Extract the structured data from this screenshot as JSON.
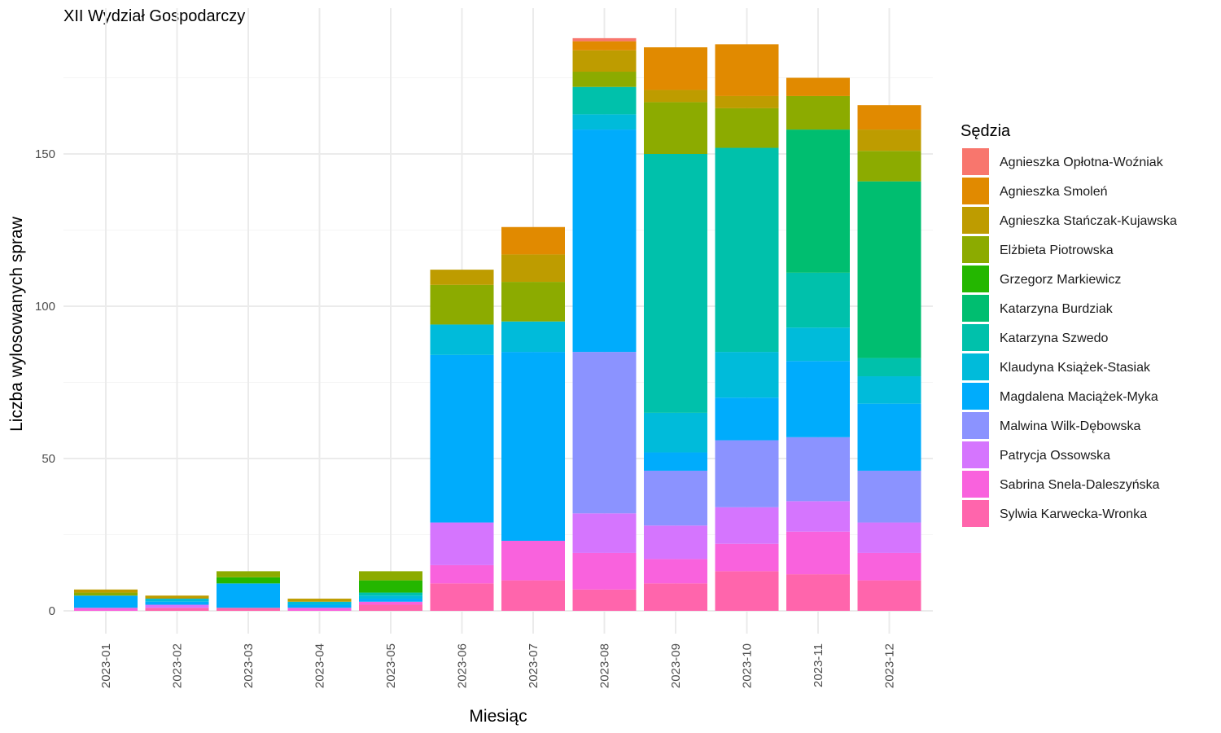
{
  "chart_data": {
    "type": "bar",
    "stacked": true,
    "title": "XII Wydział Gospodarczy",
    "xlabel": "Miesiąc",
    "ylabel": "Liczba wylosowanych spraw",
    "ylim": [
      0,
      188
    ],
    "yticks": [
      0,
      50,
      100,
      150
    ],
    "grid": true,
    "legend_position": "right",
    "legend_title": "Sędzia",
    "categories": [
      "2023-01",
      "2023-02",
      "2023-03",
      "2023-04",
      "2023-05",
      "2023-06",
      "2023-07",
      "2023-08",
      "2023-09",
      "2023-10",
      "2023-11",
      "2023-12"
    ],
    "series": [
      {
        "name": "Agnieszka Opłotna-Woźniak",
        "color": "#F8766D",
        "values": [
          0,
          0,
          0,
          0,
          0,
          0,
          0,
          1,
          0,
          0,
          0,
          0
        ]
      },
      {
        "name": "Agnieszka Smoleń",
        "color": "#E18A00",
        "values": [
          0,
          0,
          0,
          0,
          0,
          0,
          9,
          3,
          14,
          17,
          6,
          8
        ]
      },
      {
        "name": "Agnieszka Stańczak-Kujawska",
        "color": "#BE9C00",
        "values": [
          1,
          1,
          0,
          1,
          0,
          5,
          9,
          7,
          4,
          4,
          0,
          7
        ]
      },
      {
        "name": "Elżbieta Piotrowska",
        "color": "#8CAB00",
        "values": [
          1,
          0,
          2,
          0,
          3,
          13,
          13,
          5,
          17,
          13,
          11,
          10
        ]
      },
      {
        "name": "Grzegorz Markiewicz",
        "color": "#24B700",
        "values": [
          0,
          0,
          2,
          0,
          4,
          0,
          0,
          0,
          0,
          0,
          0,
          0
        ]
      },
      {
        "name": "Katarzyna Burdziak",
        "color": "#00BE70",
        "values": [
          0,
          0,
          0,
          0,
          0,
          0,
          0,
          0,
          0,
          0,
          47,
          58
        ]
      },
      {
        "name": "Katarzyna Szwedo",
        "color": "#00C1AB",
        "values": [
          0,
          0,
          0,
          0,
          1,
          0,
          0,
          9,
          85,
          67,
          18,
          6
        ]
      },
      {
        "name": "Klaudyna Książek-Stasiak",
        "color": "#00BBDA",
        "values": [
          0,
          1,
          0,
          1,
          1,
          10,
          10,
          5,
          13,
          15,
          11,
          9
        ]
      },
      {
        "name": "Magdalena Maciążek-Myka",
        "color": "#00ACFC",
        "values": [
          4,
          1,
          8,
          1,
          1,
          55,
          62,
          73,
          6,
          14,
          25,
          22
        ]
      },
      {
        "name": "Malwina Wilk-Dębowska",
        "color": "#8B93FF",
        "values": [
          0,
          0,
          0,
          0,
          0,
          0,
          0,
          53,
          18,
          22,
          21,
          17
        ]
      },
      {
        "name": "Patrycja Ossowska",
        "color": "#D575FE",
        "values": [
          0,
          1,
          0,
          0,
          0,
          14,
          0,
          13,
          11,
          12,
          10,
          10
        ]
      },
      {
        "name": "Sabrina Snela-Daleszyńska",
        "color": "#F962DD",
        "values": [
          1,
          0,
          0,
          1,
          1,
          6,
          13,
          12,
          8,
          9,
          14,
          9
        ]
      },
      {
        "name": "Sylwia Karwecka-Wronka",
        "color": "#FF65AC",
        "values": [
          0,
          1,
          1,
          0,
          2,
          9,
          10,
          7,
          9,
          13,
          12,
          10
        ]
      }
    ]
  }
}
